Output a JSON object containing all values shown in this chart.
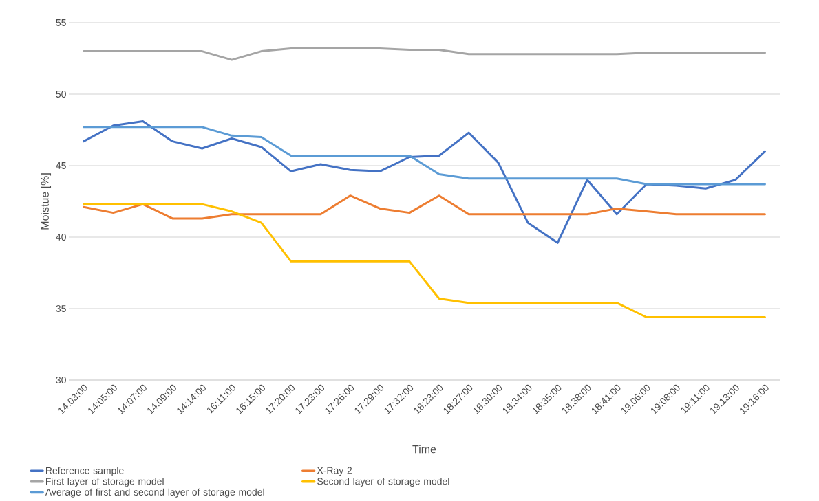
{
  "chart_data": {
    "type": "line",
    "xlabel": "Time",
    "ylabel": "Moistue [%]",
    "categories": [
      "14:03:00",
      "14:05:00",
      "14:07:00",
      "14:09:00",
      "14:14:00",
      "16:11:00",
      "16:15:00",
      "17:20:00",
      "17:23:00",
      "17:26:00",
      "17:29:00",
      "17:32:00",
      "18:23:00",
      "18:27:00",
      "18:30:00",
      "18:34:00",
      "18:35:00",
      "18:38:00",
      "18:41:00",
      "19:06:00",
      "19:08:00",
      "19:11:00",
      "19:13:00",
      "19:16:00"
    ],
    "series": [
      {
        "name": "Reference sample",
        "color": "#4472c4",
        "values": [
          46.7,
          47.8,
          48.1,
          46.7,
          46.2,
          46.9,
          46.3,
          44.6,
          45.1,
          44.7,
          44.6,
          45.6,
          45.7,
          47.3,
          45.2,
          41.0,
          39.6,
          44.0,
          41.6,
          43.7,
          43.6,
          43.4,
          44.0,
          46.0
        ]
      },
      {
        "name": "X-Ray 2",
        "color": "#ed7d31",
        "values": [
          42.1,
          41.7,
          42.3,
          41.3,
          41.3,
          41.6,
          41.6,
          41.6,
          41.6,
          42.9,
          42.0,
          41.7,
          42.9,
          41.6,
          41.6,
          41.6,
          41.6,
          41.6,
          42.0,
          41.8,
          41.6,
          41.6,
          41.6,
          41.6
        ]
      },
      {
        "name": "First layer of storage model",
        "color": "#a5a5a5",
        "values": [
          53.0,
          53.0,
          53.0,
          53.0,
          53.0,
          52.4,
          53.0,
          53.2,
          53.2,
          53.2,
          53.2,
          53.1,
          53.1,
          52.8,
          52.8,
          52.8,
          52.8,
          52.8,
          52.8,
          52.9,
          52.9,
          52.9,
          52.9,
          52.9
        ]
      },
      {
        "name": "Second layer of storage model",
        "color": "#ffc000",
        "values": [
          42.3,
          42.3,
          42.3,
          42.3,
          42.3,
          41.8,
          41.0,
          38.3,
          38.3,
          38.3,
          38.3,
          38.3,
          35.7,
          35.4,
          35.4,
          35.4,
          35.4,
          35.4,
          35.4,
          34.4,
          34.4,
          34.4,
          34.4,
          34.4
        ]
      },
      {
        "name": "Average of first and second layer of storage model",
        "color": "#5b9bd5",
        "values": [
          47.7,
          47.7,
          47.7,
          47.7,
          47.7,
          47.1,
          47.0,
          45.7,
          45.7,
          45.7,
          45.7,
          45.7,
          44.4,
          44.1,
          44.1,
          44.1,
          44.1,
          44.1,
          44.1,
          43.7,
          43.7,
          43.7,
          43.7,
          43.7
        ]
      }
    ],
    "ylim": [
      30,
      55
    ],
    "yticks": [
      30,
      35,
      40,
      45,
      50,
      55
    ],
    "grid": "y",
    "legend": "bottom"
  }
}
